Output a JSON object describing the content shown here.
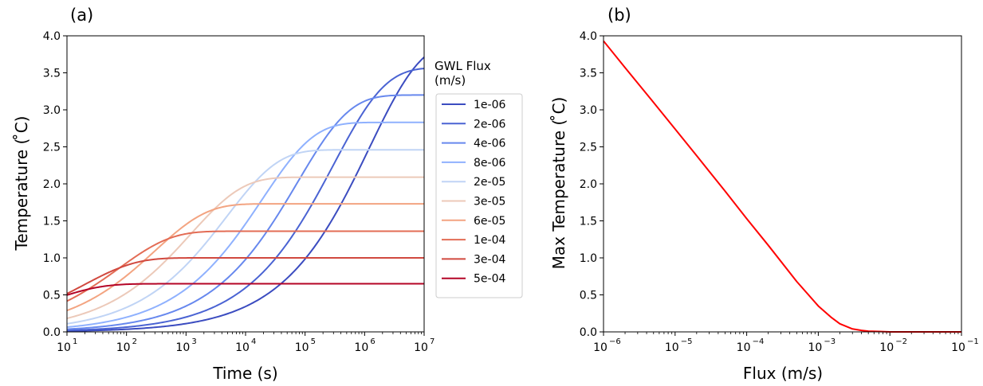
{
  "chart_data": [
    {
      "type": "line",
      "panel_label": "(a)",
      "xlabel": "Time (s)",
      "ylabel": "Temperature ( ̊C)",
      "xscale": "log",
      "xlim": [
        10,
        10000000
      ],
      "ylim": [
        0.0,
        4.0
      ],
      "x_ticks": [
        1,
        2,
        3,
        4,
        5,
        6,
        7
      ],
      "x_tick_labels": [
        "10",
        "10",
        "10",
        "10",
        "10",
        "10",
        "10"
      ],
      "x_tick_exponents": [
        "1",
        "2",
        "3",
        "4",
        "5",
        "6",
        "7"
      ],
      "y_ticks": [
        0.0,
        0.5,
        1.0,
        1.5,
        2.0,
        2.5,
        3.0,
        3.5,
        4.0
      ],
      "y_tick_labels": [
        "0.0",
        "0.5",
        "1.0",
        "1.5",
        "2.0",
        "2.5",
        "3.0",
        "3.5",
        "4.0"
      ],
      "grid": false,
      "legend": {
        "title_line1": "GWL Flux",
        "title_line2": "(m/s)",
        "placement": "outside-right"
      },
      "curve_model": "T(t) = plateau * (1 - exp(-(t/tau)^0.5)), approximated from the plotted curves",
      "series": [
        {
          "name": "1e-06",
          "color": "#3b4cc0",
          "plateau": 3.93,
          "tau": 1200000
        },
        {
          "name": "2e-06",
          "color": "#4a63d3",
          "plateau": 3.57,
          "tau": 300000
        },
        {
          "name": "4e-06",
          "color": "#6788ee",
          "plateau": 3.2,
          "tau": 75000
        },
        {
          "name": "8e-06",
          "color": "#8fb1fe",
          "plateau": 2.83,
          "tau": 19000
        },
        {
          "name": "2e-05",
          "color": "#c0d4f5",
          "plateau": 2.46,
          "tau": 4800
        },
        {
          "name": "3e-05",
          "color": "#ecc9b9",
          "plateau": 2.09,
          "tau": 1200
        },
        {
          "name": "6e-05",
          "color": "#f3a481",
          "plateau": 1.73,
          "tau": 300
        },
        {
          "name": "1e-04",
          "color": "#e36c55",
          "plateau": 1.36,
          "tau": 75
        },
        {
          "name": "3e-04",
          "color": "#d1493f",
          "plateau": 1.0,
          "tau": 19
        },
        {
          "name": "5e-04",
          "color": "#b40426",
          "plateau": 0.65,
          "tau": 4.8
        }
      ]
    },
    {
      "type": "line",
      "panel_label": "(b)",
      "xlabel": "Flux (m/s)",
      "ylabel": "Max Temperature ( ̊C)",
      "xscale": "log",
      "xlim": [
        1e-06,
        0.1
      ],
      "ylim": [
        0.0,
        4.0
      ],
      "x_ticks": [
        -6,
        -5,
        -4,
        -3,
        -2,
        -1
      ],
      "x_tick_labels": [
        "10",
        "10",
        "10",
        "10",
        "10",
        "10"
      ],
      "x_tick_exponents": [
        "−6",
        "−5",
        "−4",
        "−3",
        "−2",
        "−1"
      ],
      "y_ticks": [
        0.0,
        0.5,
        1.0,
        1.5,
        2.0,
        2.5,
        3.0,
        3.5,
        4.0
      ],
      "y_tick_labels": [
        "0.0",
        "0.5",
        "1.0",
        "1.5",
        "2.0",
        "2.5",
        "3.0",
        "3.5",
        "4.0"
      ],
      "grid": false,
      "series": [
        {
          "color": "#ff0000",
          "x": [
            1e-06,
            2e-06,
            5e-06,
            1e-05,
            2e-05,
            5e-05,
            0.0001,
            0.0002,
            0.0005,
            0.001,
            0.0015,
            0.002,
            0.003,
            0.004,
            0.005,
            0.007,
            0.01,
            0.02,
            0.05,
            0.1
          ],
          "y": [
            3.93,
            3.57,
            3.1,
            2.74,
            2.38,
            1.9,
            1.53,
            1.17,
            0.68,
            0.35,
            0.2,
            0.11,
            0.04,
            0.02,
            0.01,
            0.005,
            0.0,
            0.0,
            0.0,
            0.0
          ]
        }
      ]
    }
  ]
}
